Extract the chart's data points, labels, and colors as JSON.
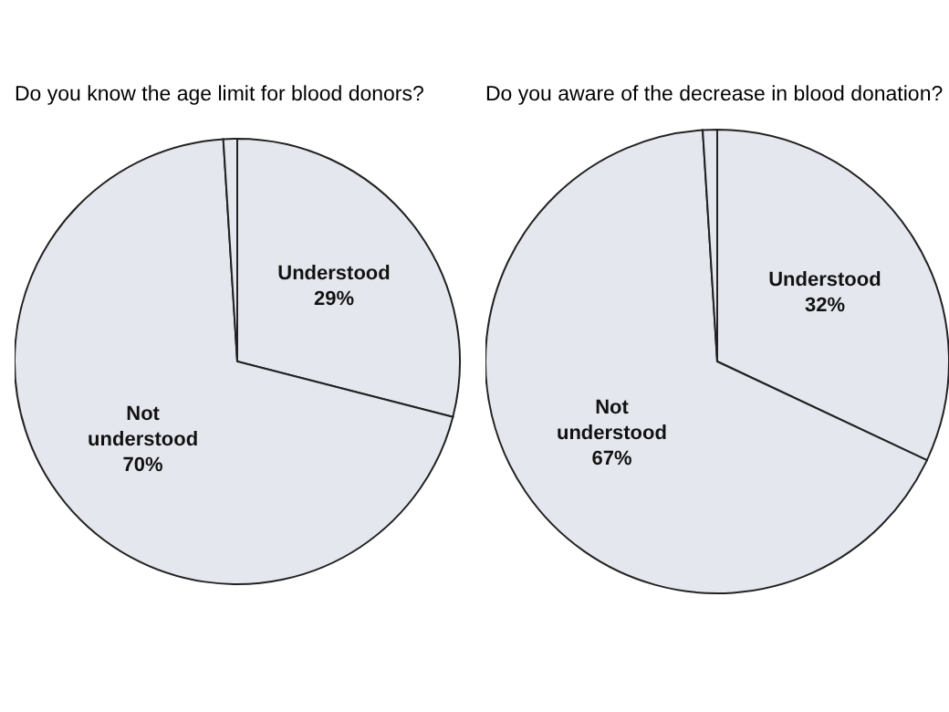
{
  "chart_data": [
    {
      "type": "pie",
      "title": "Do you know the age limit for blood donors?",
      "categories": [
        "Understood",
        "Not\nunderstood",
        null
      ],
      "values": [
        29,
        70,
        1
      ],
      "value_labels": [
        "29%",
        "70%",
        null
      ],
      "colors": [
        "#e4e8ee",
        "#e4e8ee",
        "#e4e8ee"
      ]
    },
    {
      "type": "pie",
      "title": "Do you aware of the decrease in blood donation?",
      "categories": [
        "Understood",
        "Not\nunderstood",
        null
      ],
      "values": [
        32,
        67,
        1
      ],
      "value_labels": [
        "32%",
        "67%",
        null
      ],
      "colors": [
        "#e4e8ee",
        "#e4e8ee",
        "#e4e8ee"
      ]
    }
  ]
}
